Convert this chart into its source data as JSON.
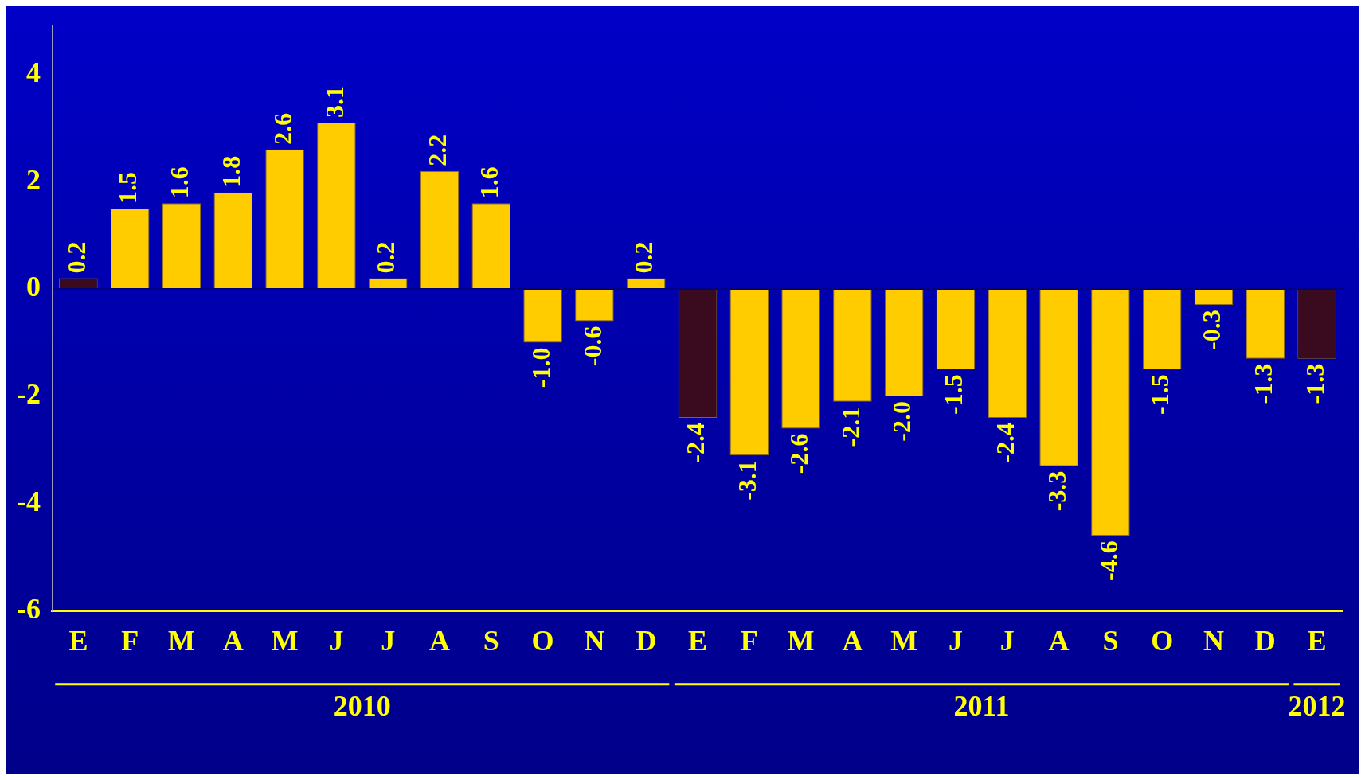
{
  "chart_data": {
    "type": "bar",
    "categories": [
      "E",
      "F",
      "M",
      "A",
      "M",
      "J",
      "J",
      "A",
      "S",
      "O",
      "N",
      "D",
      "E",
      "F",
      "M",
      "A",
      "M",
      "J",
      "J",
      "A",
      "S",
      "O",
      "N",
      "D",
      "E"
    ],
    "values": [
      0.2,
      1.5,
      1.6,
      1.8,
      2.6,
      3.1,
      0.2,
      2.2,
      1.6,
      -1.0,
      -0.6,
      0.2,
      -2.4,
      -3.1,
      -2.6,
      -2.1,
      -2.0,
      -1.5,
      -2.4,
      -3.3,
      -4.6,
      -1.5,
      -0.3,
      -1.3,
      -1.3
    ],
    "value_labels": [
      "0.2",
      "1.5",
      "1.6",
      "1.8",
      "2.6",
      "3.1",
      "0.2",
      "2.2",
      "1.6",
      "-1.0",
      "-0.6",
      "0.2",
      "-2.4",
      "-3.1",
      "-2.6",
      "-2.1",
      "-2.0",
      "-1.5",
      "-2.4",
      "-3.3",
      "-4.6",
      "-1.5",
      "-0.3",
      "-1.3",
      "-1.3"
    ],
    "colors": [
      "#3a0a1e",
      "#ffcc00",
      "#ffcc00",
      "#ffcc00",
      "#ffcc00",
      "#ffcc00",
      "#ffcc00",
      "#ffcc00",
      "#ffcc00",
      "#ffcc00",
      "#ffcc00",
      "#ffcc00",
      "#3a0a1e",
      "#ffcc00",
      "#ffcc00",
      "#ffcc00",
      "#ffcc00",
      "#ffcc00",
      "#ffcc00",
      "#ffcc00",
      "#ffcc00",
      "#ffcc00",
      "#ffcc00",
      "#ffcc00",
      "#3a0a1e"
    ],
    "ylim": [
      -6,
      4.9
    ],
    "yticks": [
      -6,
      -4,
      -2,
      0,
      2,
      4
    ],
    "annotations": [
      "2010",
      "2011",
      "2012"
    ],
    "ref_lines": [
      {
        "axis": "y",
        "value": 0,
        "color": "#000080"
      }
    ],
    "grid": false,
    "legend": false
  }
}
